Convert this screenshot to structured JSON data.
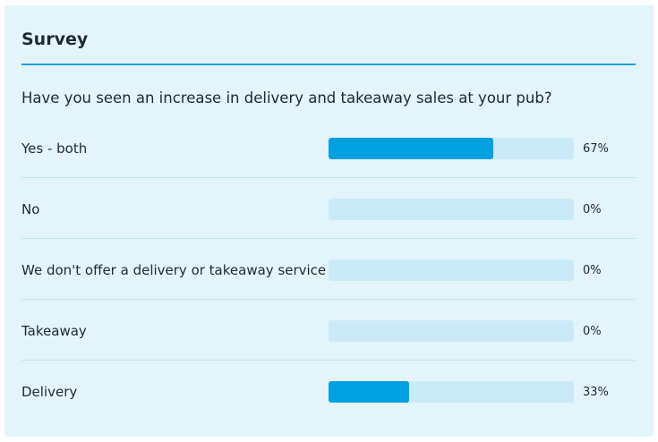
{
  "survey": {
    "title": "Survey",
    "question": "Have you seen an increase in delivery and takeaway sales at your pub?",
    "accent_color": "#00a0e0",
    "track_color": "#cbeaf8",
    "options": [
      {
        "label": "Yes - both",
        "percent_label": "67%",
        "percent": 67
      },
      {
        "label": "No",
        "percent_label": "0%",
        "percent": 0
      },
      {
        "label": "We don't offer a delivery or takeaway service",
        "percent_label": "0%",
        "percent": 0
      },
      {
        "label": "Takeaway",
        "percent_label": "0%",
        "percent": 0
      },
      {
        "label": "Delivery",
        "percent_label": "33%",
        "percent": 33
      }
    ]
  }
}
